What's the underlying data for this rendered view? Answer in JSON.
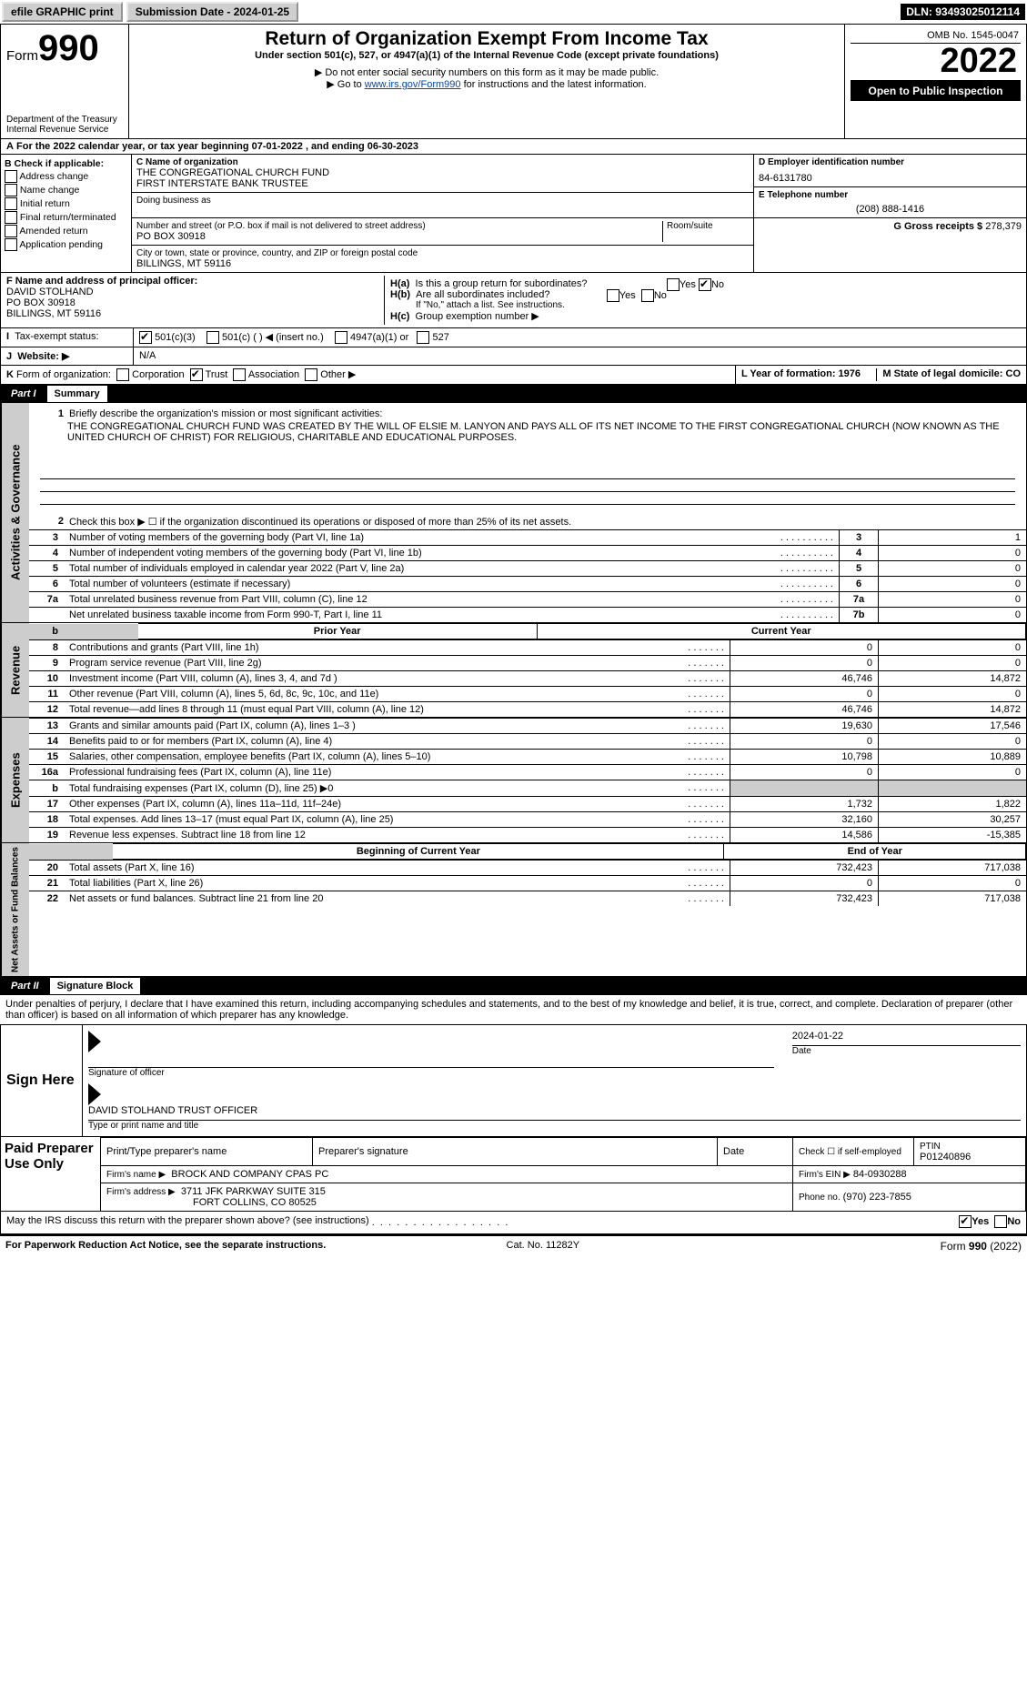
{
  "topbar": {
    "efile": "efile GRAPHIC print",
    "submission_label": "Submission Date - 2024-01-25",
    "dln_label": "DLN: 93493025012114"
  },
  "header": {
    "form_label": "Form",
    "form_no": "990",
    "dept": "Department of the Treasury",
    "irs": "Internal Revenue Service",
    "title": "Return of Organization Exempt From Income Tax",
    "subtitle": "Under section 501(c), 527, or 4947(a)(1) of the Internal Revenue Code (except private foundations)",
    "warn": "▶ Do not enter social security numbers on this form as it may be made public.",
    "goto_pre": "▶ Go to ",
    "goto_link": "www.irs.gov/Form990",
    "goto_post": " for instructions and the latest information.",
    "omb": "OMB No. 1545-0047",
    "year": "2022",
    "open": "Open to Public Inspection"
  },
  "period": {
    "line_a": "For the 2022 calendar year, or tax year beginning 07-01-2022    , and ending 06-30-2023",
    "a": "A"
  },
  "B": {
    "label": "B Check if applicable:",
    "items": [
      "Address change",
      "Name change",
      "Initial return",
      "Final return/terminated",
      "Amended return",
      "Application pending"
    ]
  },
  "C": {
    "label": "C Name of organization",
    "name1": "THE CONGREGATIONAL CHURCH FUND",
    "name2": "FIRST INTERSTATE BANK TRUSTEE",
    "dba_label": "Doing business as",
    "addr_label": "Number and street (or P.O. box if mail is not delivered to street address)",
    "room_label": "Room/suite",
    "addr": "PO BOX 30918",
    "city_label": "City or town, state or province, country, and ZIP or foreign postal code",
    "city": "BILLINGS, MT  59116"
  },
  "D": {
    "label": "D Employer identification number",
    "val": "84-6131780"
  },
  "E": {
    "label": "E Telephone number",
    "val": "(208) 888-1416"
  },
  "G": {
    "label": "G Gross receipts $",
    "val": "278,379"
  },
  "F": {
    "label": "F Name and address of principal officer:",
    "name": "DAVID STOLHAND",
    "addr1": "PO BOX 30918",
    "addr2": "BILLINGS, MT  59116"
  },
  "H": {
    "a_label": "Is this a group return for subordinates?",
    "a_pre": "H(a)",
    "b_label": "Are all subordinates included?",
    "b_pre": "H(b)",
    "b_hint": "If \"No,\" attach a list. See instructions.",
    "c_pre": "H(c)",
    "c_label": "Group exemption number ▶",
    "yes": "Yes",
    "no": "No"
  },
  "I": {
    "pre": "I",
    "label": "Tax-exempt status:",
    "o1": "501(c)(3)",
    "o2": "501(c) (   ) ◀ (insert no.)",
    "o3": "4947(a)(1) or",
    "o4": "527"
  },
  "J": {
    "pre": "J",
    "label": "Website: ▶",
    "val": "N/A"
  },
  "K": {
    "pre": "K",
    "label": "Form of organization:",
    "o1": "Corporation",
    "o2": "Trust",
    "o3": "Association",
    "o4": "Other ▶"
  },
  "L": {
    "label": "L Year of formation: 1976"
  },
  "M": {
    "label": "M State of legal domicile: CO"
  },
  "parts": {
    "p1_label": "Part I",
    "p1_title": "Summary",
    "p2_label": "Part II",
    "p2_title": "Signature Block"
  },
  "sections": {
    "act": "Activities & Governance",
    "rev": "Revenue",
    "exp": "Expenses",
    "net": "Net Assets or Fund Balances"
  },
  "summary": {
    "q1_label": "Briefly describe the organization's mission or most significant activities:",
    "q1_text": "THE CONGREGATIONAL CHURCH FUND WAS CREATED BY THE WILL OF ELSIE M. LANYON AND PAYS ALL OF ITS NET INCOME TO THE FIRST CONGREGATIONAL CHURCH (NOW KNOWN AS THE UNITED CHURCH OF CHRIST) FOR RELIGIOUS, CHARITABLE AND EDUCATIONAL PURPOSES.",
    "q2": "Check this box ▶ ☐  if the organization discontinued its operations or disposed of more than 25% of its net assets.",
    "rows_small": [
      {
        "n": "3",
        "t": "Number of voting members of the governing body (Part VI, line 1a)",
        "b": "3",
        "v": "1"
      },
      {
        "n": "4",
        "t": "Number of independent voting members of the governing body (Part VI, line 1b)",
        "b": "4",
        "v": "0"
      },
      {
        "n": "5",
        "t": "Total number of individuals employed in calendar year 2022 (Part V, line 2a)",
        "b": "5",
        "v": "0"
      },
      {
        "n": "6",
        "t": "Total number of volunteers (estimate if necessary)",
        "b": "6",
        "v": "0"
      },
      {
        "n": "7a",
        "t": "Total unrelated business revenue from Part VIII, column (C), line 12",
        "b": "7a",
        "v": "0"
      },
      {
        "n": "",
        "t": "Net unrelated business taxable income from Form 990-T, Part I, line 11",
        "b": "7b",
        "v": "0"
      }
    ],
    "hdr_prior": "Prior Year",
    "hdr_curr": "Current Year",
    "rev": [
      {
        "n": "8",
        "t": "Contributions and grants (Part VIII, line 1h)",
        "p": "0",
        "c": "0"
      },
      {
        "n": "9",
        "t": "Program service revenue (Part VIII, line 2g)",
        "p": "0",
        "c": "0"
      },
      {
        "n": "10",
        "t": "Investment income (Part VIII, column (A), lines 3, 4, and 7d )",
        "p": "46,746",
        "c": "14,872"
      },
      {
        "n": "11",
        "t": "Other revenue (Part VIII, column (A), lines 5, 6d, 8c, 9c, 10c, and 11e)",
        "p": "0",
        "c": "0"
      },
      {
        "n": "12",
        "t": "Total revenue—add lines 8 through 11 (must equal Part VIII, column (A), line 12)",
        "p": "46,746",
        "c": "14,872"
      }
    ],
    "exp": [
      {
        "n": "13",
        "t": "Grants and similar amounts paid (Part IX, column (A), lines 1–3 )",
        "p": "19,630",
        "c": "17,546"
      },
      {
        "n": "14",
        "t": "Benefits paid to or for members (Part IX, column (A), line 4)",
        "p": "0",
        "c": "0"
      },
      {
        "n": "15",
        "t": "Salaries, other compensation, employee benefits (Part IX, column (A), lines 5–10)",
        "p": "10,798",
        "c": "10,889"
      },
      {
        "n": "16a",
        "t": "Professional fundraising fees (Part IX, column (A), line 11e)",
        "p": "0",
        "c": "0"
      },
      {
        "n": "b",
        "t": "Total fundraising expenses (Part IX, column (D), line 25) ▶0",
        "p": "",
        "c": "",
        "shade": true
      },
      {
        "n": "17",
        "t": "Other expenses (Part IX, column (A), lines 11a–11d, 11f–24e)",
        "p": "1,732",
        "c": "1,822"
      },
      {
        "n": "18",
        "t": "Total expenses. Add lines 13–17 (must equal Part IX, column (A), line 25)",
        "p": "32,160",
        "c": "30,257"
      },
      {
        "n": "19",
        "t": "Revenue less expenses. Subtract line 18 from line 12",
        "p": "14,586",
        "c": "-15,385"
      }
    ],
    "net_hdr_b": "Beginning of Current Year",
    "net_hdr_e": "End of Year",
    "net": [
      {
        "n": "20",
        "t": "Total assets (Part X, line 16)",
        "p": "732,423",
        "c": "717,038"
      },
      {
        "n": "21",
        "t": "Total liabilities (Part X, line 26)",
        "p": "0",
        "c": "0"
      },
      {
        "n": "22",
        "t": "Net assets or fund balances. Subtract line 21 from line 20",
        "p": "732,423",
        "c": "717,038"
      }
    ]
  },
  "sig": {
    "pen": "Under penalties of perjury, I declare that I have examined this return, including accompanying schedules and statements, and to the best of my knowledge and belief, it is true, correct, and complete. Declaration of preparer (other than officer) is based on all information of which preparer has any knowledge.",
    "sign": "Sign Here",
    "sig_of": "Signature of officer",
    "date_label": "Date",
    "date": "2024-01-22",
    "name": "DAVID STOLHAND  TRUST OFFICER",
    "name_hint": "Type or print name and title",
    "paid": "Paid Preparer Use Only",
    "h1": "Print/Type preparer's name",
    "h2": "Preparer's signature",
    "h3": "Date",
    "h4": "Check ☐ if self-employed",
    "h5": "PTIN",
    "ptin": "P01240896",
    "firm_name_l": "Firm's name    ▶",
    "firm_name": "BROCK AND COMPANY CPAS PC",
    "firm_ein_l": "Firm's EIN ▶",
    "firm_ein": "84-0930288",
    "firm_addr_l": "Firm's address ▶",
    "firm_addr1": "3711 JFK PARKWAY SUITE 315",
    "firm_addr2": "FORT COLLINS, CO  80525",
    "phone_l": "Phone no.",
    "phone": "(970) 223-7855",
    "discuss": "May the IRS discuss this return with the preparer shown above? (see instructions)"
  },
  "footer": {
    "left": "For Paperwork Reduction Act Notice, see the separate instructions.",
    "mid": "Cat. No. 11282Y",
    "right": "Form 990 (2022)"
  }
}
